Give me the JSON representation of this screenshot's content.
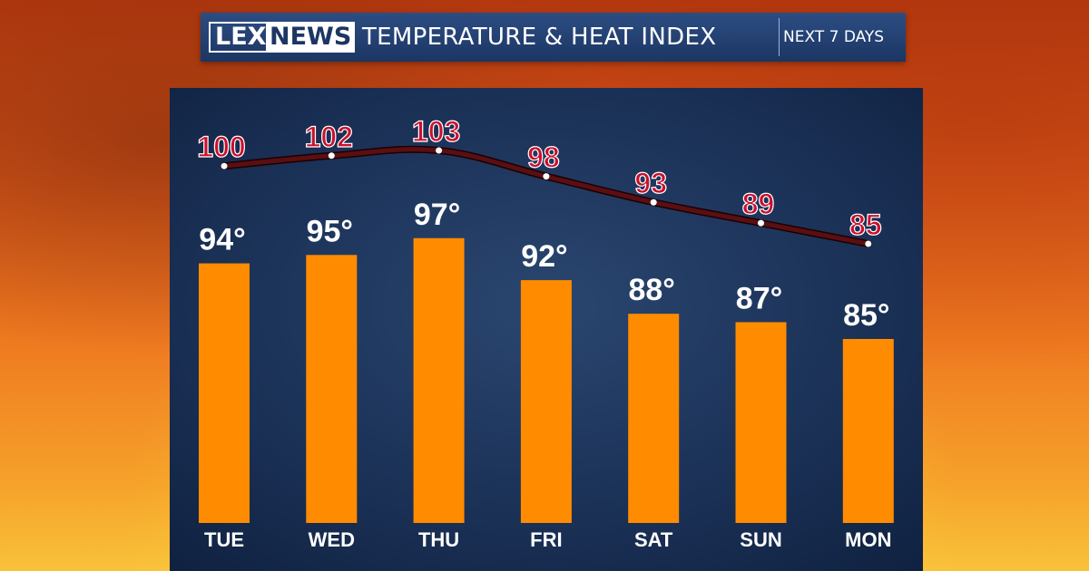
{
  "header": {
    "logo_left": "LEX",
    "logo_right": "NEWS",
    "title": "TEMPERATURE & HEAT INDEX",
    "subtitle": "NEXT 7 DAYS"
  },
  "colors": {
    "bar": "#ff8c00",
    "heat_index_line": "#5a0f12",
    "heat_index_label": "#c8102e",
    "temperature_label": "#ffffff",
    "panel": "#1a3055"
  },
  "chart_data": {
    "type": "bar",
    "categories": [
      "TUE",
      "WED",
      "THU",
      "FRI",
      "SAT",
      "SUN",
      "MON"
    ],
    "series": [
      {
        "values": [
          94,
          95,
          97,
          92,
          88,
          87,
          85
        ],
        "labels": [
          "94°",
          "95°",
          "97°",
          "92°",
          "88°",
          "87°",
          "85°"
        ]
      },
      {
        "type": "line",
        "values": [
          100,
          102,
          103,
          98,
          93,
          89,
          85
        ],
        "labels": [
          "100",
          "102",
          "103",
          "98",
          "93",
          "89",
          "85"
        ]
      }
    ],
    "title": "TEMPERATURE & HEAT INDEX",
    "xlabel": "",
    "ylabel": "",
    "grid": false
  }
}
